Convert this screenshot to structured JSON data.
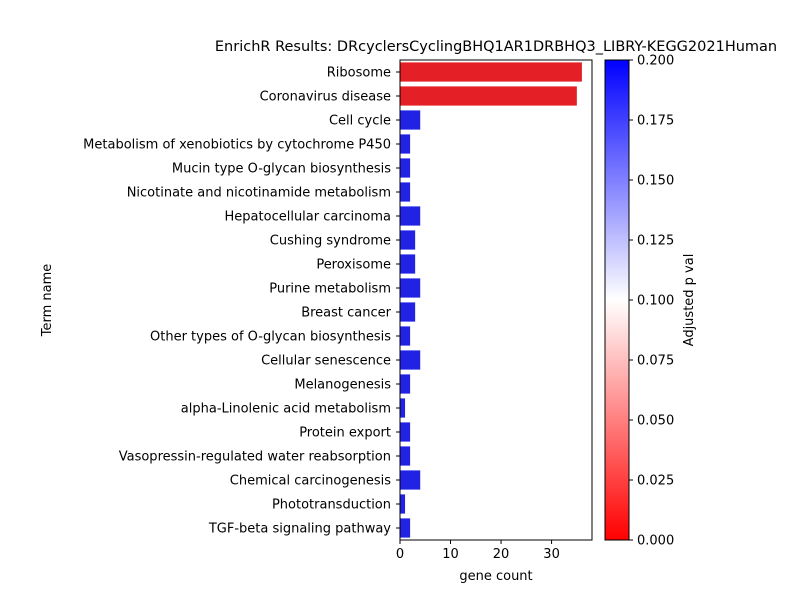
{
  "chart_data": {
    "type": "bar",
    "orientation": "horizontal",
    "title": "EnrichR Results: DRcyclersCyclingBHQ1AR1DRBHQ3_LIBRY-KEGG2021Human",
    "xlabel": "gene count",
    "ylabel": "Term name",
    "xlim": [
      0,
      38
    ],
    "xticks": [
      0,
      10,
      20,
      30
    ],
    "categories": [
      "Ribosome",
      "Coronavirus disease",
      "Cell cycle",
      "Metabolism of xenobiotics by cytochrome P450",
      "Mucin type O-glycan biosynthesis",
      "Nicotinate and nicotinamide metabolism",
      "Hepatocellular carcinoma",
      "Cushing syndrome",
      "Peroxisome",
      "Purine metabolism",
      "Breast cancer",
      "Other types of O-glycan biosynthesis",
      "Cellular senescence",
      "Melanogenesis",
      "alpha-Linolenic acid metabolism",
      "Protein export",
      "Vasopressin-regulated water reabsorption",
      "Chemical carcinogenesis",
      "Phototransduction",
      "TGF-beta signaling pathway"
    ],
    "values": [
      36,
      35,
      4,
      2,
      2,
      2,
      4,
      3,
      3,
      4,
      3,
      2,
      4,
      2,
      1,
      2,
      2,
      4,
      1,
      2
    ],
    "bar_colors": [
      "#e41f25",
      "#e41f25",
      "#2222e4",
      "#2222e4",
      "#2222e4",
      "#2222e4",
      "#2222e4",
      "#2222e4",
      "#2222e4",
      "#2222e4",
      "#2222e4",
      "#2222e4",
      "#2222e4",
      "#2222e4",
      "#2222e4",
      "#2222e4",
      "#2222e4",
      "#2222e4",
      "#2222e4",
      "#2222e4"
    ],
    "grid": false,
    "colorbar": {
      "label": "Adjusted p val",
      "range": [
        0,
        0.2
      ],
      "ticks": [
        "0.000",
        "0.025",
        "0.050",
        "0.075",
        "0.100",
        "0.125",
        "0.150",
        "0.175",
        "0.200"
      ],
      "colors": [
        "#ff0000",
        "#ffffff",
        "#0000ff"
      ]
    }
  }
}
